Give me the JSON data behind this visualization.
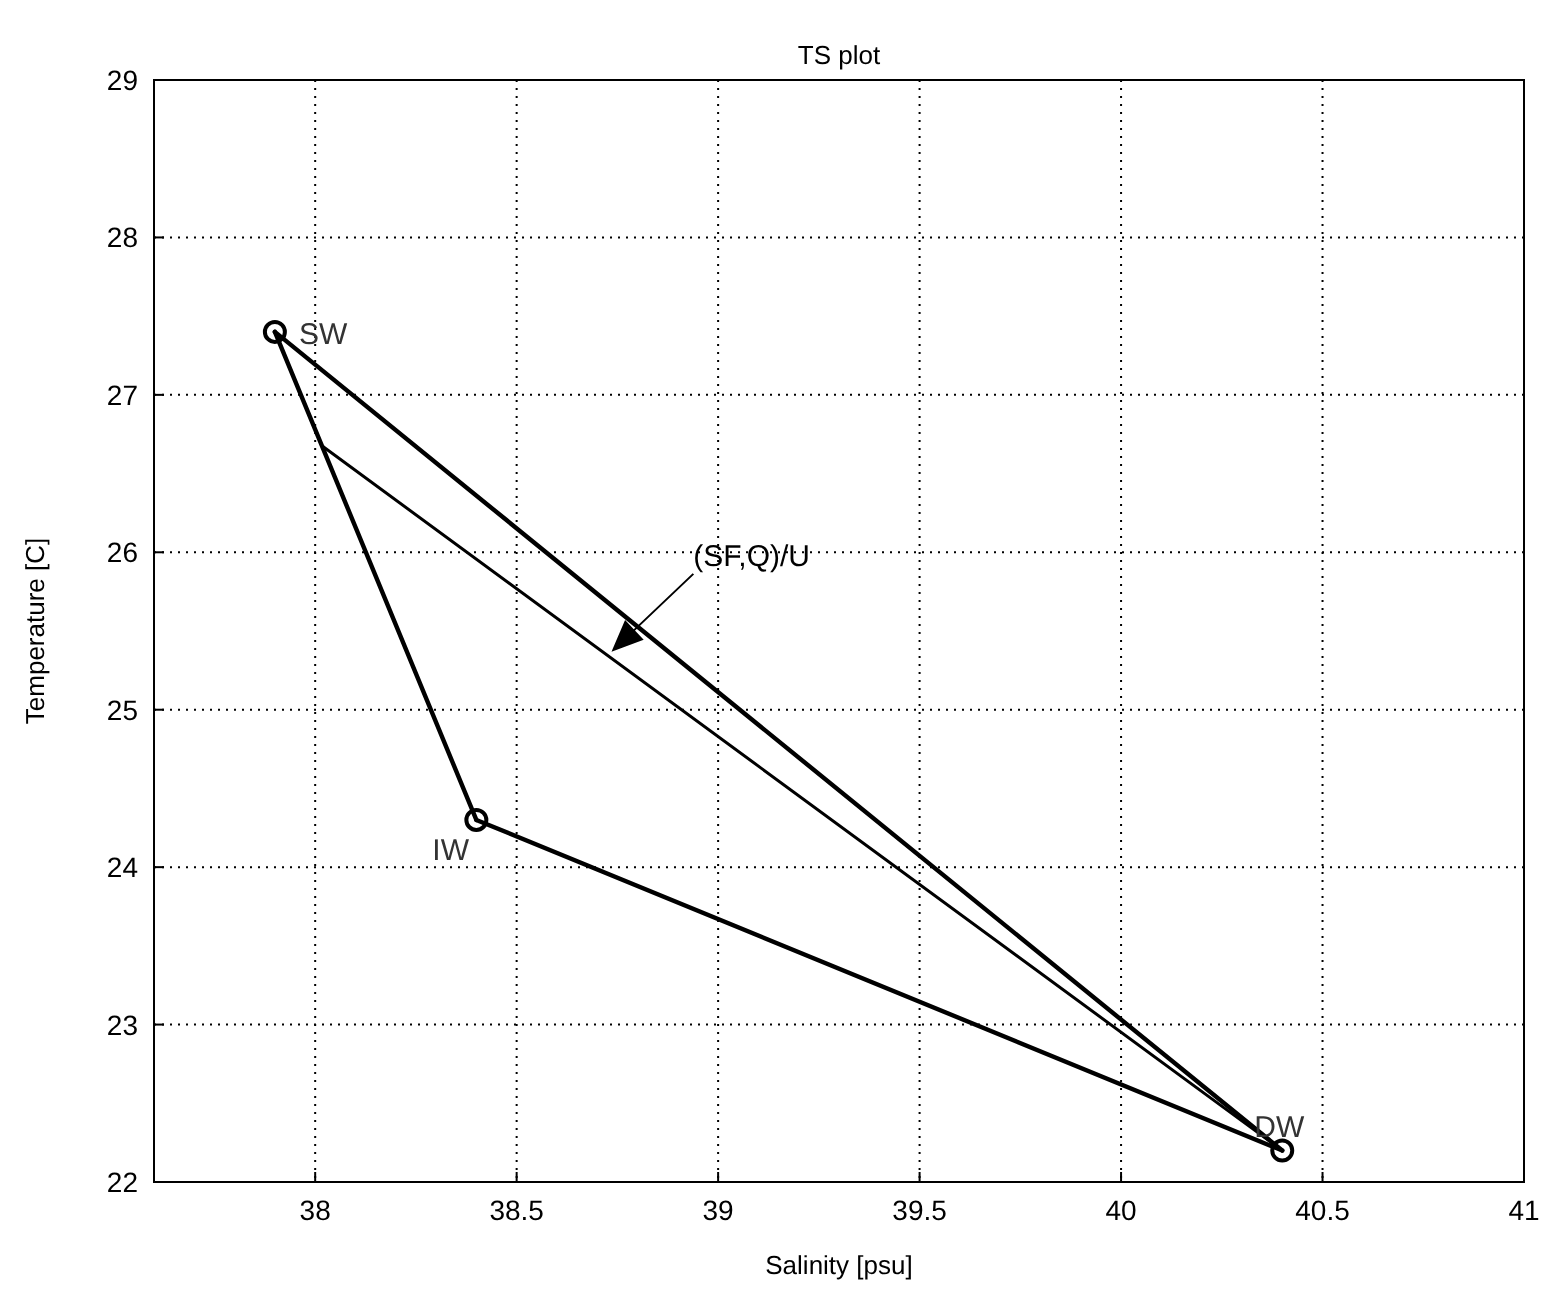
{
  "chart_data": {
    "type": "line",
    "title": "TS plot",
    "xlabel": "Salinity [psu]",
    "ylabel": "Temperature [C]",
    "xlim": [
      37.6,
      41
    ],
    "xticks": [
      38,
      38.5,
      39,
      39.5,
      40,
      40.5,
      41
    ],
    "ylim": [
      22,
      29
    ],
    "yticks": [
      22,
      23,
      24,
      25,
      26,
      27,
      28,
      29
    ],
    "grid": true,
    "line_style": "solid",
    "series": [
      {
        "color": "#000000",
        "marker": "none",
        "x": [
          37.9,
          38.4
        ],
        "values": [
          27.4,
          24.3
        ]
      },
      {
        "color": "#000000",
        "marker": "none",
        "x": [
          38.4,
          40.4
        ],
        "values": [
          24.3,
          22.2
        ]
      },
      {
        "color": "#000000",
        "marker": "none",
        "x": [
          37.9,
          40.4
        ],
        "values": [
          27.4,
          22.2
        ]
      },
      {
        "color": "#000000",
        "marker": "none",
        "x": [
          38.02,
          40.4
        ],
        "values": [
          26.67,
          22.2
        ]
      },
      {
        "type": "scatter",
        "color": "#000000",
        "marker": "circle",
        "x": [
          37.9,
          38.4,
          40.4
        ],
        "values": [
          27.4,
          24.3,
          22.2
        ]
      }
    ],
    "annotations": [
      {
        "text": "SW",
        "x": 37.9,
        "y": 27.4
      },
      {
        "text": "IW",
        "x": 38.4,
        "y": 24.3
      },
      {
        "text": "DW",
        "x": 40.4,
        "y": 22.2
      },
      {
        "text": "(SF,Q)/U",
        "x": 38.74,
        "y": 25.38
      }
    ]
  }
}
